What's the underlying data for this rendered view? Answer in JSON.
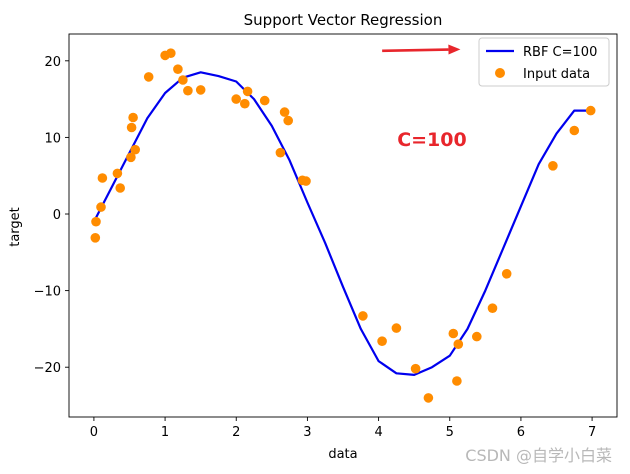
{
  "chart_data": {
    "type": "scatter",
    "title": "Support Vector Regression",
    "xlabel": "data",
    "ylabel": "target",
    "xlim": [
      -0.35,
      7.35
    ],
    "ylim": [
      -26.5,
      23.5
    ],
    "xticks": [
      0,
      1,
      2,
      3,
      4,
      5,
      6,
      7
    ],
    "yticks": [
      -20,
      -10,
      0,
      10,
      20
    ],
    "grid": false,
    "legend_position": "top-right",
    "series": [
      {
        "name": "RBF C=100",
        "kind": "line",
        "color": "#0000ee",
        "x": [
          0.0,
          0.25,
          0.5,
          0.75,
          1.0,
          1.25,
          1.5,
          1.75,
          2.0,
          2.25,
          2.5,
          2.75,
          3.0,
          3.25,
          3.5,
          3.75,
          4.0,
          4.25,
          4.5,
          4.75,
          5.0,
          5.25,
          5.5,
          5.75,
          6.0,
          6.25,
          6.5,
          6.75,
          7.0
        ],
        "y": [
          -1.0,
          3.5,
          8.0,
          12.5,
          15.8,
          17.8,
          18.5,
          18.0,
          17.3,
          15.0,
          11.5,
          7.0,
          1.5,
          -3.8,
          -9.5,
          -15.0,
          -19.2,
          -20.8,
          -21.0,
          -20.0,
          -18.5,
          -15.0,
          -10.0,
          -4.5,
          1.0,
          6.5,
          10.5,
          13.5,
          13.5
        ]
      },
      {
        "name": "Input data",
        "kind": "scatter",
        "color": "#ff8c00",
        "x": [
          0.02,
          0.03,
          0.1,
          0.12,
          0.33,
          0.37,
          0.52,
          0.53,
          0.55,
          0.58,
          0.77,
          1.0,
          1.08,
          1.18,
          1.25,
          1.32,
          1.5,
          2.0,
          2.12,
          2.16,
          2.4,
          2.62,
          2.68,
          2.73,
          2.93,
          2.98,
          3.78,
          4.05,
          4.25,
          4.52,
          4.7,
          5.05,
          5.1,
          5.12,
          5.38,
          5.6,
          5.8,
          6.45,
          6.75,
          6.98
        ],
        "y": [
          -3.1,
          -1.0,
          0.9,
          4.7,
          5.3,
          3.4,
          7.4,
          11.3,
          12.6,
          8.4,
          17.9,
          20.7,
          21.0,
          18.9,
          17.5,
          16.1,
          16.2,
          15.0,
          14.4,
          16.0,
          14.8,
          8.0,
          13.3,
          12.2,
          4.4,
          4.3,
          -13.3,
          -16.6,
          -14.9,
          -20.2,
          -24.0,
          -15.6,
          -21.8,
          -17.0,
          -16.0,
          -12.3,
          -7.8,
          6.3,
          10.9,
          13.5
        ]
      }
    ],
    "annotations": [
      {
        "text": "C=100",
        "x": 4.75,
        "y": 8.9,
        "color": "#e8262c"
      }
    ],
    "arrow": {
      "from": [
        4.05,
        21.3
      ],
      "to": [
        5.15,
        21.5
      ],
      "color": "#e8262c"
    }
  },
  "watermark": "CSDN @自学小白菜"
}
